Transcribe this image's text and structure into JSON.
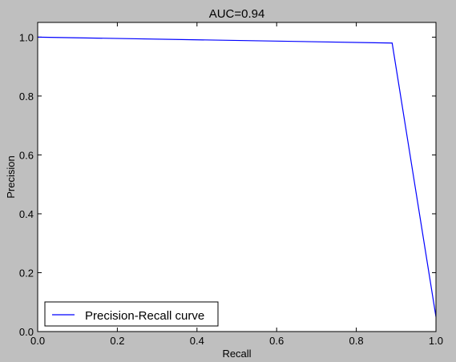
{
  "chart_data": {
    "type": "line",
    "title": "AUC=0.94",
    "xlabel": "Recall",
    "ylabel": "Precision",
    "xlim": [
      0.0,
      1.0
    ],
    "ylim": [
      0.0,
      1.05
    ],
    "xticks": [
      "0.0",
      "0.2",
      "0.4",
      "0.6",
      "0.8",
      "1.0"
    ],
    "yticks": [
      "0.0",
      "0.2",
      "0.4",
      "0.6",
      "0.8",
      "1.0"
    ],
    "grid": false,
    "legend_position": "lower-left",
    "series": [
      {
        "name": "Precision-Recall curve",
        "color": "#0000ff",
        "x": [
          0.0,
          0.89,
          1.0
        ],
        "y": [
          1.0,
          0.98,
          0.05
        ]
      }
    ]
  }
}
